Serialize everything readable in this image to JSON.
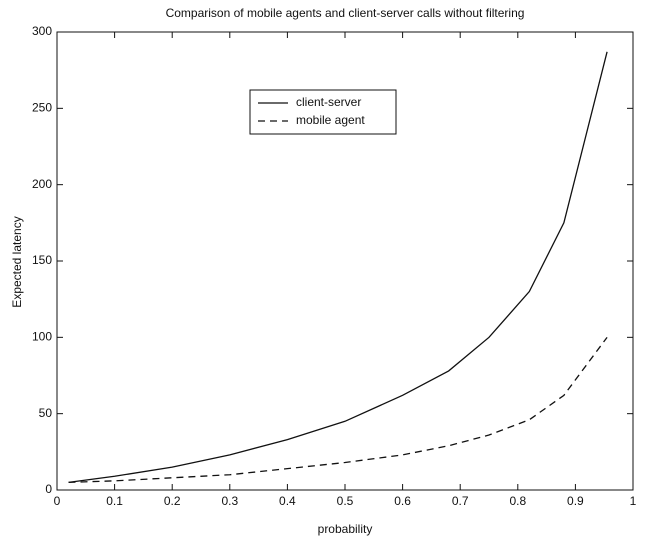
{
  "chart_data": {
    "type": "line",
    "title": "Comparison of mobile agents and client-server calls without filtering",
    "xlabel": "probability",
    "ylabel": "Expected latency",
    "x": [
      0.02,
      0.1,
      0.2,
      0.3,
      0.4,
      0.5,
      0.6,
      0.68,
      0.75,
      0.82,
      0.88,
      0.955
    ],
    "series": [
      {
        "name": "client-server",
        "color": "#111111",
        "linestyle": "solid",
        "values": [
          5,
          9,
          15,
          23,
          33,
          45,
          62,
          78,
          100,
          130,
          175,
          287
        ]
      },
      {
        "name": "mobile agent",
        "color": "#111111",
        "linestyle": "dashed",
        "values": [
          5,
          6,
          8,
          10,
          14,
          18,
          23,
          29,
          36,
          46,
          62,
          100
        ]
      }
    ],
    "xlim": [
      0,
      1
    ],
    "xticks": [
      0,
      0.1,
      0.2,
      0.3,
      0.4,
      0.5,
      0.6,
      0.7,
      0.8,
      0.9,
      1
    ],
    "ylim": [
      0,
      300
    ],
    "yticks": [
      0,
      50,
      100,
      150,
      200,
      250,
      300
    ],
    "grid": false,
    "legend": "upper center"
  }
}
